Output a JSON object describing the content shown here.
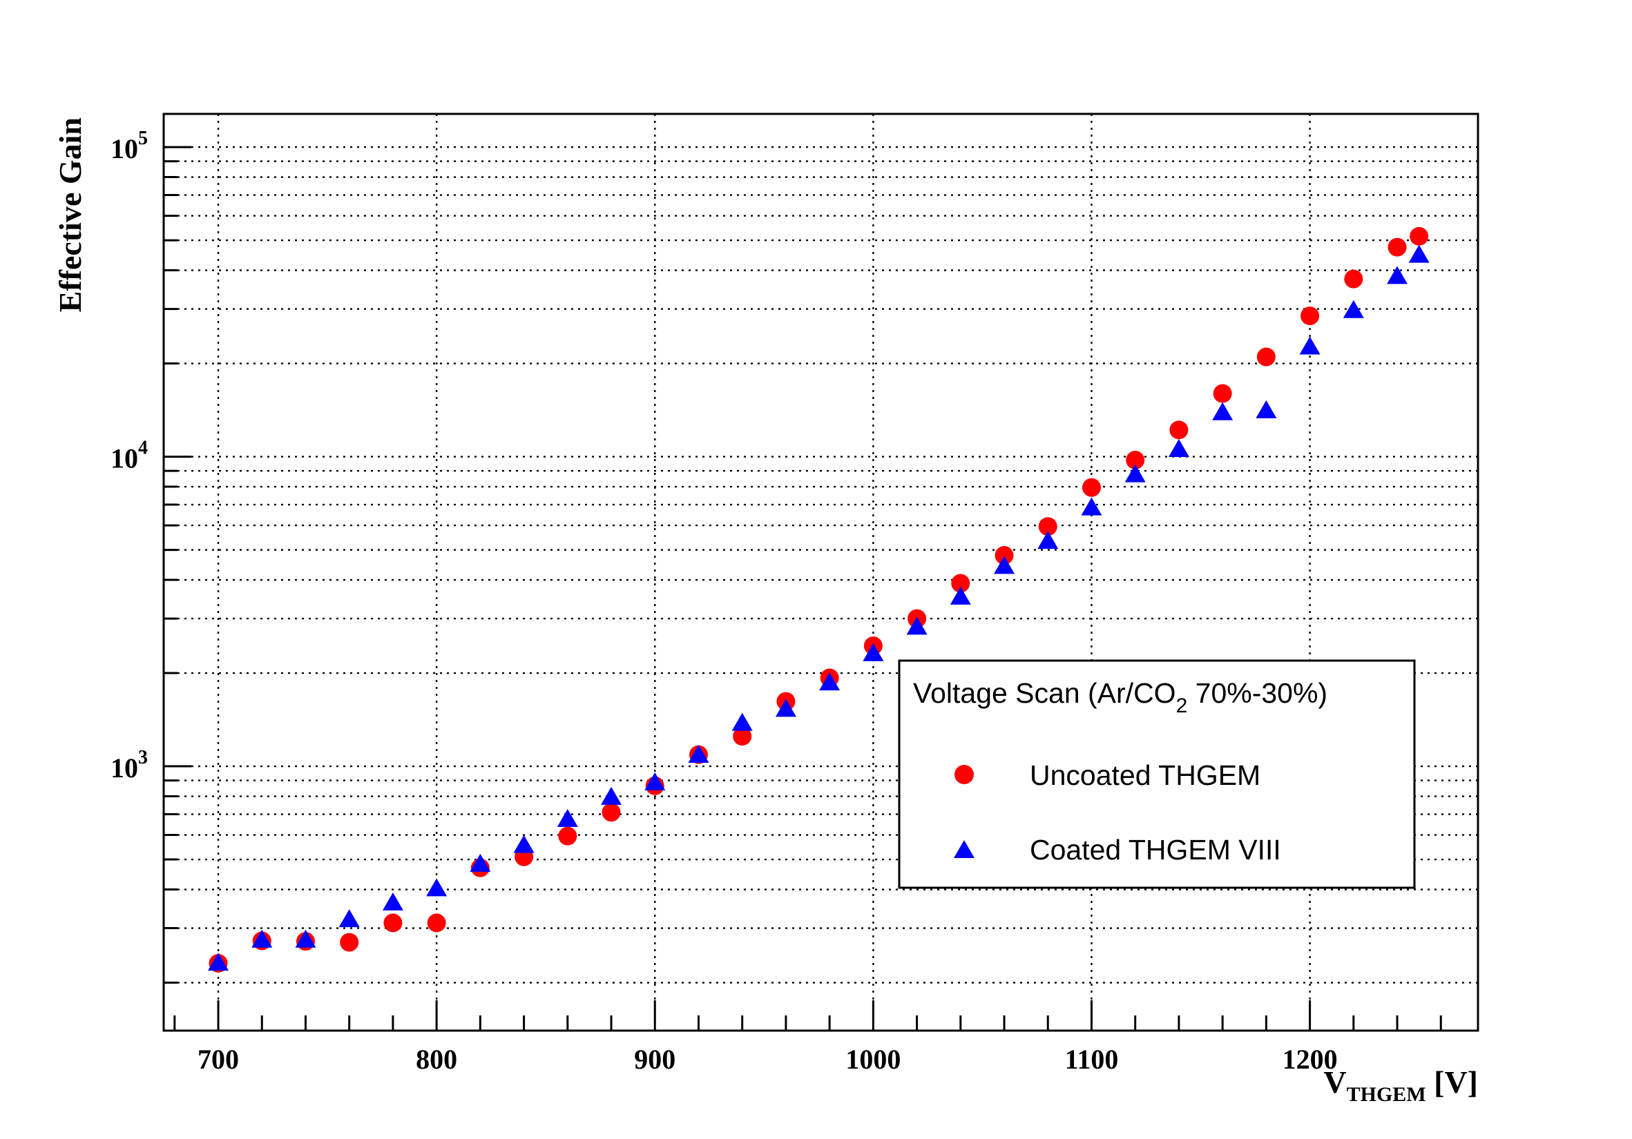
{
  "chart_data": {
    "type": "scatter",
    "title": "",
    "xlabel": {
      "main": "V",
      "sub": "THGEM",
      "unit": " [V]"
    },
    "ylabel": "Effective Gain",
    "xlim": [
      675,
      1277
    ],
    "ylim": [
      140,
      128000
    ],
    "yscale": "log",
    "grid": true,
    "x_ticks": [
      700,
      800,
      900,
      1000,
      1100,
      1200
    ],
    "y_ticks": [
      {
        "value": 1000,
        "base": "10",
        "exp": "3"
      },
      {
        "value": 10000,
        "base": "10",
        "exp": "4"
      },
      {
        "value": 100000,
        "base": "10",
        "exp": "5"
      }
    ],
    "legend": {
      "position": "center-right",
      "title_main": "Voltage Scan (Ar/CO",
      "title_sub": "2",
      "title_rest": " 70%-30%)"
    },
    "series": [
      {
        "name": "Uncoated THGEM",
        "marker": "circle",
        "color": "#ff0000",
        "x": [
          700,
          720,
          740,
          760,
          780,
          800,
          820,
          840,
          860,
          880,
          900,
          920,
          940,
          960,
          980,
          1000,
          1020,
          1040,
          1060,
          1080,
          1100,
          1120,
          1140,
          1160,
          1180,
          1200,
          1220,
          1240,
          1250
        ],
        "y": [
          231,
          273,
          272,
          270,
          312,
          312,
          470,
          510,
          595,
          710,
          865,
          1090,
          1250,
          1620,
          1930,
          2450,
          3000,
          3900,
          4800,
          5950,
          7950,
          9750,
          12200,
          16000,
          21000,
          28500,
          37500,
          47500,
          51500
        ]
      },
      {
        "name": "Coated THGEM VIII",
        "marker": "triangle",
        "color": "#0000ff",
        "x": [
          700,
          720,
          740,
          760,
          780,
          800,
          820,
          840,
          860,
          880,
          900,
          920,
          940,
          960,
          980,
          1000,
          1020,
          1040,
          1060,
          1080,
          1100,
          1120,
          1140,
          1160,
          1180,
          1200,
          1220,
          1240,
          1250
        ],
        "y": [
          230,
          273,
          273,
          318,
          360,
          400,
          480,
          552,
          670,
          790,
          880,
          1080,
          1370,
          1520,
          1850,
          2300,
          2800,
          3500,
          4400,
          5300,
          6800,
          8700,
          10500,
          13800,
          14000,
          22500,
          29500,
          38000,
          44500
        ]
      }
    ]
  }
}
